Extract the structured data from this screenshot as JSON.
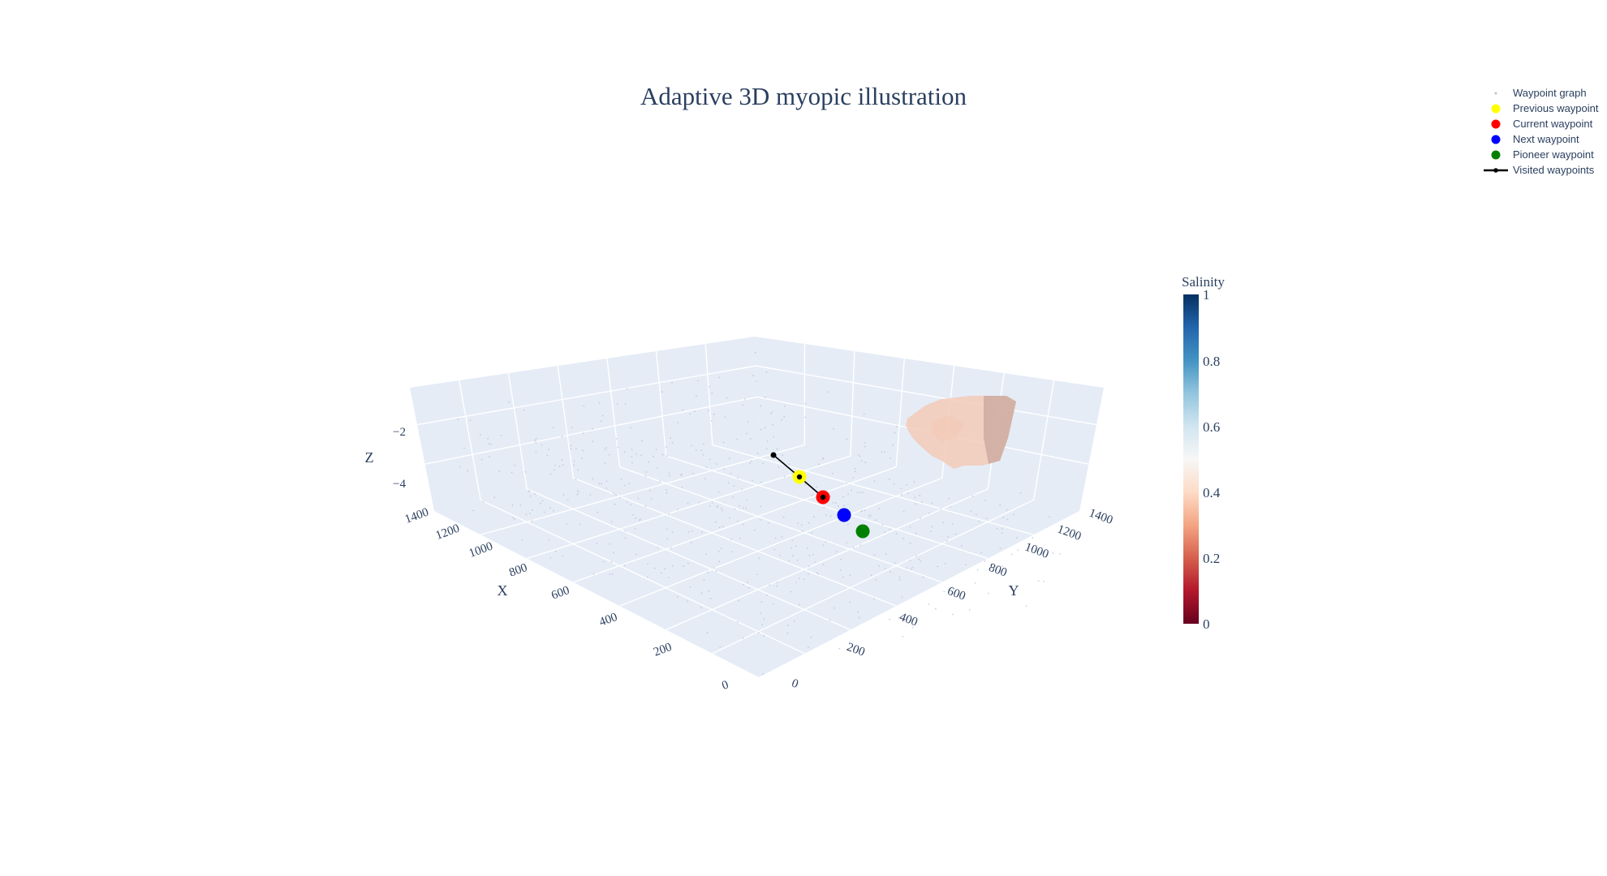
{
  "chart_data": {
    "type": "scatter",
    "title": "Adaptive 3D myopic illustration",
    "axes": {
      "x": {
        "title": "X",
        "range": [
          0,
          1400
        ],
        "ticks": [
          "0",
          "200",
          "400",
          "600",
          "800",
          "1000",
          "1200",
          "1400"
        ]
      },
      "y": {
        "title": "Y",
        "range": [
          0,
          1400
        ],
        "ticks": [
          "0",
          "200",
          "400",
          "600",
          "800",
          "1000",
          "1200",
          "1400"
        ]
      },
      "z": {
        "title": "Z",
        "range": [
          -5,
          -1
        ],
        "ticks": [
          "−4",
          "−2"
        ]
      }
    },
    "legend": {
      "placement": "top-right",
      "items": [
        {
          "name": "Waypoint graph",
          "symbol": "dot",
          "color": "#b8c2d4"
        },
        {
          "name": "Previous waypoint",
          "symbol": "marker",
          "color": "#ffff00"
        },
        {
          "name": "Current waypoint",
          "symbol": "marker",
          "color": "#ff0000"
        },
        {
          "name": "Next waypoint",
          "symbol": "marker",
          "color": "#0000ff"
        },
        {
          "name": "Pioneer waypoint",
          "symbol": "marker",
          "color": "#008000"
        },
        {
          "name": "Visited waypoints",
          "symbol": "line",
          "color": "#000000"
        }
      ]
    },
    "colorbar": {
      "title": "Salinity",
      "ticks": [
        "0",
        "0.2",
        "0.4",
        "0.6",
        "0.8",
        "1"
      ],
      "colorscale": [
        "#67001f",
        "#b2182b",
        "#d6604d",
        "#f4a582",
        "#fddbc7",
        "#f7f7f7",
        "#d1e5f0",
        "#92c5de",
        "#4393c3",
        "#2166ac",
        "#053061"
      ]
    },
    "visited_path": [
      [
        745,
        780,
        -3.5
      ],
      [
        800,
        800,
        -3.5
      ],
      [
        845,
        845,
        -3.5
      ]
    ],
    "markers": {
      "previous": [
        800,
        800,
        -3.5
      ],
      "current": [
        845,
        845,
        -3.5
      ],
      "next": [
        900,
        900,
        -3.5
      ],
      "pioneer": [
        945,
        945,
        -3.5
      ]
    },
    "isosurface_color": "#f4c8b4",
    "isosurface_shadow_color": "#c8a49a"
  }
}
